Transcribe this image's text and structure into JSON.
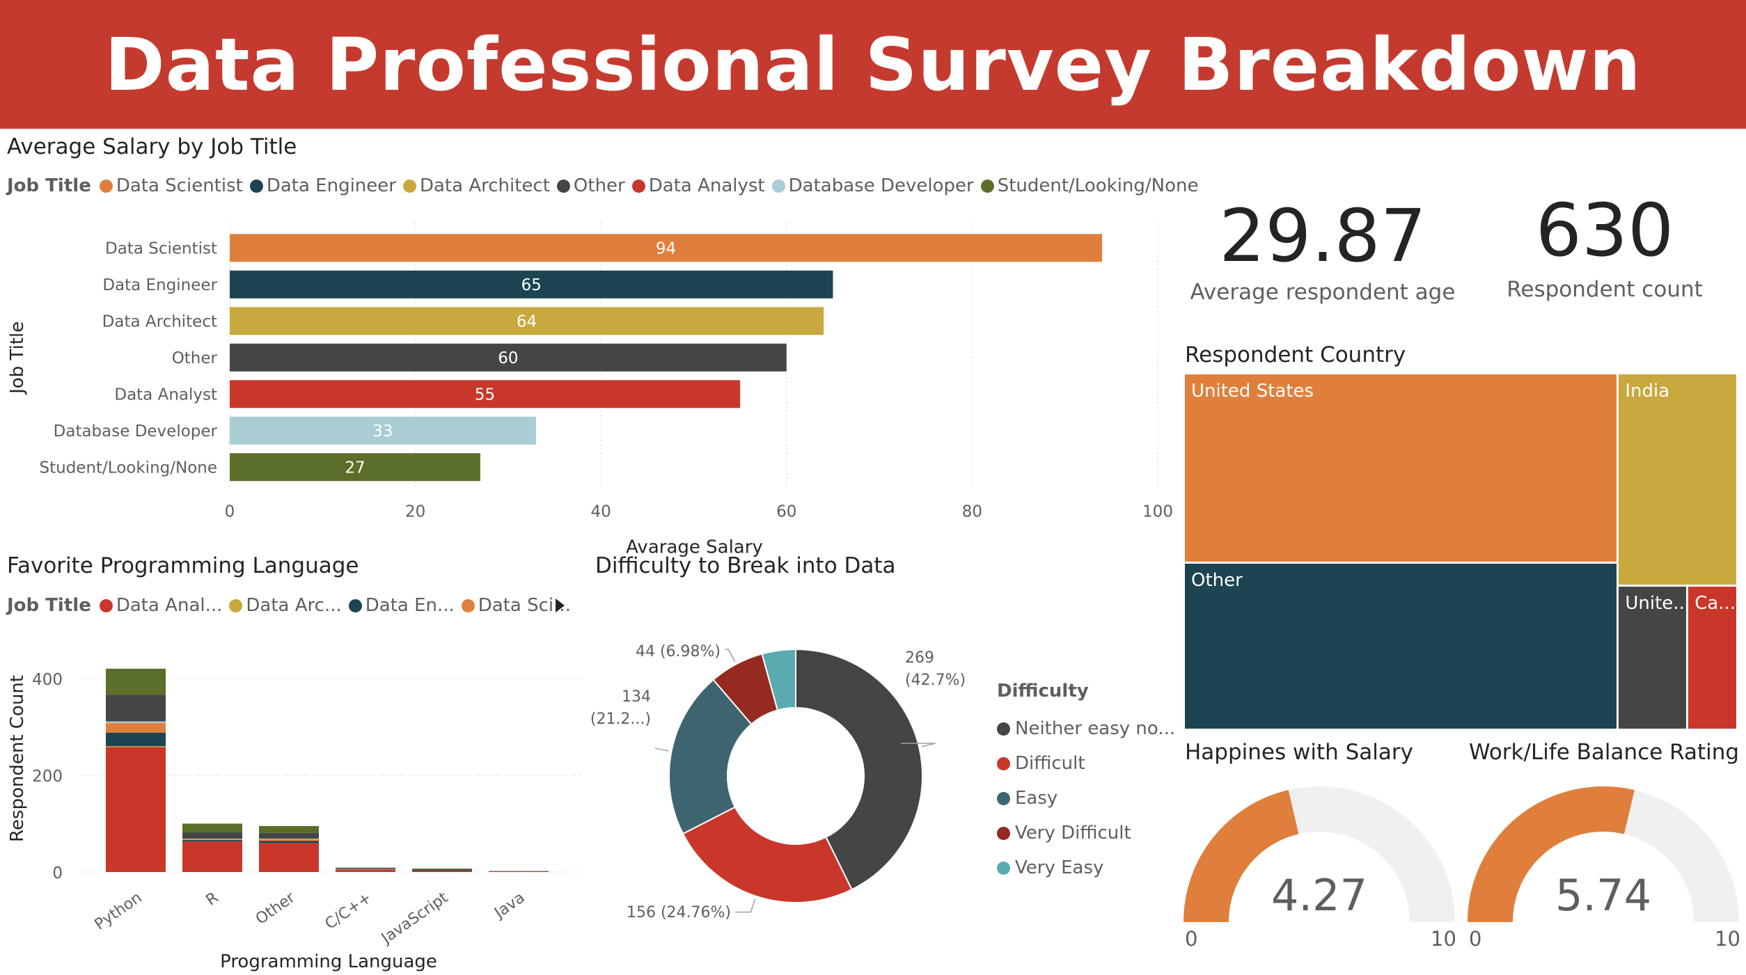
{
  "title": "Data Professional Survey Breakdown",
  "salary": {
    "title": "Average Salary by Job Title",
    "legend_title": "Job Title",
    "legend": [
      {
        "label": "Data Scientist",
        "color": "#e07f3c"
      },
      {
        "label": "Data Engineer",
        "color": "#1c4451"
      },
      {
        "label": "Data Architect",
        "color": "#c9a83d"
      },
      {
        "label": "Other",
        "color": "#454545"
      },
      {
        "label": "Data Analyst",
        "color": "#c9372b"
      },
      {
        "label": "Database Developer",
        "color": "#a9cdd3"
      },
      {
        "label": "Student/Looking/None",
        "color": "#5b6e2a"
      }
    ]
  },
  "languages": {
    "title": "Favorite Programming Language",
    "legend_title": "Job Title",
    "legend": [
      {
        "label": "Data Anal...",
        "color": "#c9372b"
      },
      {
        "label": "Data Arc...",
        "color": "#c9a83d"
      },
      {
        "label": "Data En...",
        "color": "#1c4451"
      },
      {
        "label": "Data Sci...",
        "color": "#e07f3c"
      }
    ]
  },
  "difficulty": {
    "title": "Difficulty to Break into Data",
    "legend_title": "Difficulty",
    "legend": [
      {
        "label": "Neither easy no...",
        "color": "#454545"
      },
      {
        "label": "Difficult",
        "color": "#c9372b"
      },
      {
        "label": "Easy",
        "color": "#3e6470"
      },
      {
        "label": "Very Difficult",
        "color": "#952a20"
      },
      {
        "label": "Very Easy",
        "color": "#5aaab0"
      }
    ]
  },
  "kpis": {
    "avg_age": {
      "value": "29.87",
      "label": "Average respondent age"
    },
    "count": {
      "value": "630",
      "label": "Respondent count"
    }
  },
  "country": {
    "title": "Respondent Country"
  },
  "happiness": {
    "title": "Happines with Salary"
  },
  "worklife": {
    "title": "Work/Life Balance Rating"
  },
  "chart_data": [
    {
      "type": "bar",
      "orientation": "horizontal",
      "title": "Average Salary by Job Title",
      "xlabel": "Avarage Salary",
      "ylabel": "Job Title",
      "categories": [
        "Data Scientist",
        "Data Engineer",
        "Data Architect",
        "Other",
        "Data Analyst",
        "Database Developer",
        "Student/Looking/None"
      ],
      "values": [
        94,
        65,
        64,
        60,
        55,
        33,
        27
      ],
      "colors": [
        "#e07f3c",
        "#1c4451",
        "#c9a83d",
        "#454545",
        "#c9372b",
        "#a9cdd3",
        "#5b6e2a"
      ],
      "label_colors": [
        "#ffffff",
        "#ffffff",
        "#ffffff",
        "#ffffff",
        "#ffffff",
        "#ffffff",
        "#ffffff"
      ],
      "xlim": [
        0,
        100
      ],
      "xticks": [
        0,
        20,
        40,
        60,
        80,
        100
      ],
      "grid": true
    },
    {
      "type": "bar",
      "stacked": true,
      "title": "Favorite Programming Language",
      "xlabel": "Programming Language",
      "ylabel": "Respondent Count",
      "categories": [
        "Python",
        "R",
        "Other",
        "C/C++",
        "JavaScript",
        "Java"
      ],
      "ylim": [
        0,
        450
      ],
      "yticks": [
        0,
        200,
        400
      ],
      "series": [
        {
          "name": "Data Anal...",
          "color": "#c9372b",
          "values": [
            258,
            63,
            60,
            5,
            2,
            1
          ]
        },
        {
          "name": "Data Arc...",
          "color": "#c9a83d",
          "values": [
            2,
            0,
            0,
            0,
            0,
            0
          ]
        },
        {
          "name": "Data En...",
          "color": "#1c4451",
          "values": [
            28,
            3,
            4,
            0,
            1,
            0
          ]
        },
        {
          "name": "Data Sci...",
          "color": "#e07f3c",
          "values": [
            20,
            2,
            4,
            0,
            0,
            0
          ]
        },
        {
          "color": "#a9cdd3",
          "values": [
            3,
            1,
            1,
            1,
            0,
            0
          ]
        },
        {
          "color": "#454545",
          "values": [
            55,
            13,
            12,
            2,
            2,
            1
          ]
        },
        {
          "color": "#5b6e2a",
          "values": [
            54,
            18,
            14,
            1,
            2,
            0
          ]
        }
      ],
      "grid": true
    },
    {
      "type": "pie",
      "donut": true,
      "title": "Difficulty to Break into Data",
      "categories": [
        "Neither easy no...",
        "Difficult",
        "Easy",
        "Very Difficult",
        "Very Easy"
      ],
      "values": [
        269,
        156,
        134,
        44,
        27
      ],
      "colors": [
        "#454545",
        "#c9372b",
        "#3e6470",
        "#952a20",
        "#5aaab0"
      ],
      "labels": [
        [
          "269",
          "(42.7%)"
        ],
        [
          "156 (24.76%)"
        ],
        [
          "134",
          "(21.2...)"
        ],
        [
          "44 (6.98%)"
        ],
        []
      ]
    },
    {
      "type": "treemap",
      "title": "Respondent Country",
      "categories": [
        "United States",
        "Other",
        "India",
        "Unite...",
        "Ca..."
      ],
      "values": [
        262,
        232,
        81,
        32,
        23
      ],
      "colors": [
        "#e07f3c",
        "#1c4451",
        "#c9a83d",
        "#454545",
        "#c9372b"
      ]
    },
    {
      "type": "gauge",
      "title": "Happines with Salary",
      "value": 4.27,
      "value_label": "4.27",
      "min": 0,
      "max": 10,
      "color": "#e07f3c",
      "track_color": "#f0f0f0"
    },
    {
      "type": "gauge",
      "title": "Work/Life Balance Rating",
      "value": 5.74,
      "value_label": "5.74",
      "min": 0,
      "max": 10,
      "color": "#e07f3c",
      "track_color": "#f0f0f0"
    }
  ]
}
